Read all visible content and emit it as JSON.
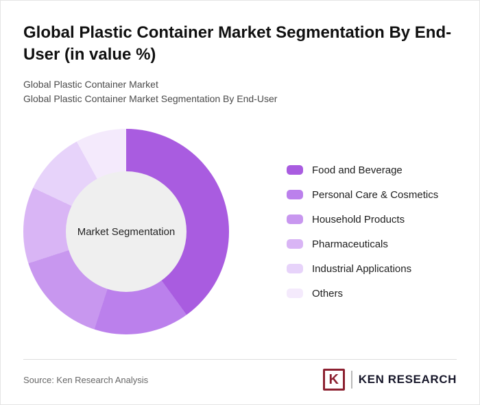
{
  "header": {
    "title": "Global Plastic Container Market Segmentation By End-User (in value %)",
    "subtitle1": "Global Plastic Container Market",
    "subtitle2": "Global Plastic Container Market Segmentation By End-User"
  },
  "chart_data": {
    "type": "pie",
    "variant": "donut",
    "title": "Global Plastic Container Market Segmentation By End-User (in value %)",
    "center_label": "Market Segmentation",
    "legend_position": "right",
    "start_angle_deg": 0,
    "direction": "clockwise",
    "series": [
      {
        "label": "Food and Beverage",
        "value": 40,
        "color": "#a95ce0"
      },
      {
        "label": "Personal Care & Cosmetics",
        "value": 15,
        "color": "#bb80ec"
      },
      {
        "label": "Household Products",
        "value": 15,
        "color": "#c897ef"
      },
      {
        "label": "Pharmaceuticals",
        "value": 12,
        "color": "#d9b5f5"
      },
      {
        "label": "Industrial Applications",
        "value": 10,
        "color": "#e7d3fa"
      },
      {
        "label": "Others",
        "value": 8,
        "color": "#f4eafc"
      }
    ]
  },
  "footer": {
    "source": "Source: Ken Research Analysis",
    "brand": "KEN RESEARCH",
    "brand_icon_letter": "K"
  },
  "colors": {
    "center_fill": "#efefef",
    "brand_red": "#8c2030",
    "divider": "#dddddd"
  }
}
